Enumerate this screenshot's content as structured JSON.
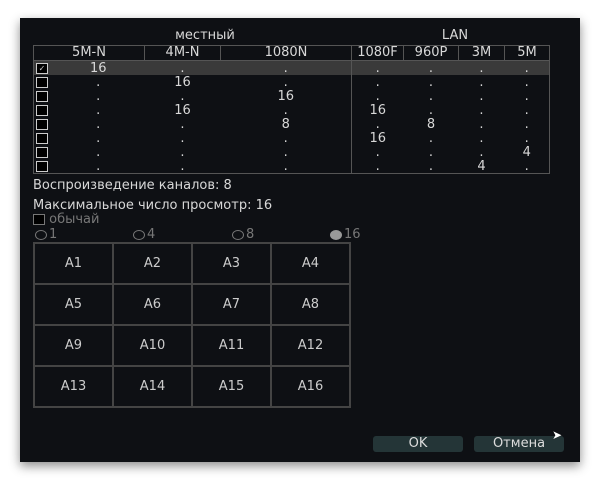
{
  "groups": {
    "local": "местный",
    "lan": "LAN"
  },
  "columns": [
    "5M-N",
    "4M-N",
    "1080N",
    "1080F",
    "960P",
    "3M",
    "5M"
  ],
  "rows": [
    {
      "checked": true,
      "values": [
        "16",
        ".",
        ".",
        ".",
        ".",
        ".",
        "."
      ]
    },
    {
      "checked": false,
      "values": [
        ".",
        "16",
        ".",
        ".",
        ".",
        ".",
        "."
      ]
    },
    {
      "checked": false,
      "values": [
        ".",
        ".",
        "16",
        ".",
        ".",
        ".",
        "."
      ]
    },
    {
      "checked": false,
      "values": [
        ".",
        "16",
        ".",
        "16",
        ".",
        ".",
        "."
      ]
    },
    {
      "checked": false,
      "values": [
        ".",
        ".",
        "8",
        ".",
        "8",
        ".",
        "."
      ]
    },
    {
      "checked": false,
      "values": [
        ".",
        ".",
        ".",
        "16",
        ".",
        ".",
        "."
      ]
    },
    {
      "checked": false,
      "values": [
        ".",
        ".",
        ".",
        ".",
        ".",
        ".",
        "4"
      ]
    },
    {
      "checked": false,
      "values": [
        ".",
        ".",
        ".",
        ".",
        ".",
        "4",
        "."
      ]
    }
  ],
  "playback": "Воспроизведение каналов: 8",
  "maxview": "Максимальное число просмотр: 16",
  "custom": {
    "label": "обычай",
    "checked": false
  },
  "radios": [
    {
      "label": "1",
      "selected": false
    },
    {
      "label": "4",
      "selected": false
    },
    {
      "label": "8",
      "selected": false
    },
    {
      "label": "16",
      "selected": true
    }
  ],
  "cells": [
    "A1",
    "A2",
    "A3",
    "A4",
    "A5",
    "A6",
    "A7",
    "A8",
    "A9",
    "A10",
    "A11",
    "A12",
    "A13",
    "A14",
    "A15",
    "A16"
  ],
  "buttons": {
    "ok": "OK",
    "cancel": "Отмена"
  }
}
